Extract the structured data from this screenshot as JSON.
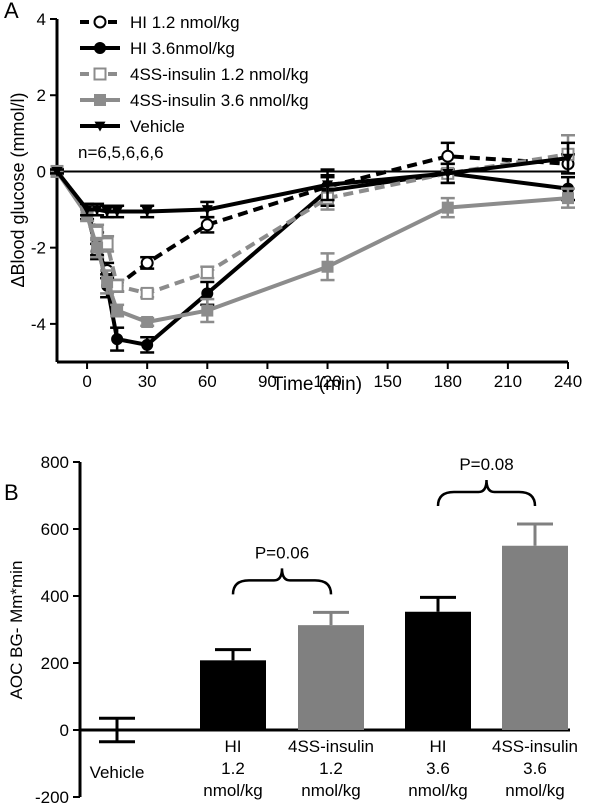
{
  "chart_data": [
    {
      "panel_label": "A",
      "type": "line",
      "xlabel": "Time (min)",
      "ylabel": "ΔBlood glucose (mmol/l)",
      "xlim": [
        -15,
        240
      ],
      "ylim": [
        -5,
        4
      ],
      "xticks": [
        0,
        30,
        60,
        90,
        120,
        150,
        180,
        210,
        240
      ],
      "yticks": [
        -4,
        -2,
        0,
        2,
        4
      ],
      "annotation": "n=6,5,6,6,6",
      "legend_position": "top-left",
      "series": [
        {
          "name": "HI 1.2 nmol/kg",
          "color": "#000000",
          "dash": "dashed",
          "marker": "circle-open",
          "x": [
            -15,
            0,
            5,
            10,
            15,
            30,
            60,
            120,
            180,
            240
          ],
          "y": [
            0,
            -1.1,
            -2.1,
            -2.6,
            -3.0,
            -2.4,
            -1.4,
            -0.4,
            0.4,
            0.2
          ],
          "err": [
            0.05,
            0.15,
            0.2,
            0.2,
            0.15,
            0.15,
            0.2,
            0.25,
            0.35,
            0.25
          ]
        },
        {
          "name": "HI 3.6nmol/kg",
          "color": "#000000",
          "dash": "solid",
          "marker": "circle-filled",
          "x": [
            -15,
            0,
            5,
            10,
            15,
            30,
            60,
            120,
            180,
            240
          ],
          "y": [
            0,
            -1.0,
            -1.9,
            -3.0,
            -4.4,
            -4.55,
            -3.2,
            -0.5,
            -0.05,
            -0.45
          ],
          "err": [
            0.05,
            0.15,
            0.3,
            0.3,
            0.3,
            0.2,
            0.3,
            0.4,
            0.25,
            0.3
          ]
        },
        {
          "name": "4SS-insulin 1.2 nmol/kg",
          "color": "#8c8c8c",
          "dash": "dashed",
          "marker": "square-open",
          "x": [
            -15,
            0,
            5,
            10,
            15,
            30,
            60,
            120,
            180,
            240
          ],
          "y": [
            0,
            -1.0,
            -1.6,
            -1.9,
            -3.0,
            -3.2,
            -2.65,
            -0.7,
            -0.05,
            0.45
          ],
          "err": [
            0.05,
            0.15,
            0.2,
            0.2,
            0.15,
            0.1,
            0.15,
            0.3,
            0.25,
            0.5
          ]
        },
        {
          "name": "4SS-insulin 3.6 nmol/kg",
          "color": "#8c8c8c",
          "dash": "solid",
          "marker": "square-filled",
          "x": [
            -15,
            0,
            5,
            10,
            15,
            30,
            60,
            120,
            180,
            240
          ],
          "y": [
            0,
            -1.15,
            -2.0,
            -2.9,
            -3.65,
            -3.95,
            -3.65,
            -2.5,
            -0.95,
            -0.7
          ],
          "err": [
            0.05,
            0.15,
            0.25,
            0.3,
            0.15,
            0.1,
            0.3,
            0.35,
            0.25,
            0.25
          ]
        },
        {
          "name": "Vehicle",
          "color": "#000000",
          "dash": "solid",
          "marker": "triangle-down",
          "x": [
            -15,
            0,
            5,
            10,
            15,
            30,
            60,
            120,
            180,
            240
          ],
          "y": [
            0,
            -1.0,
            -1.0,
            -1.05,
            -1.05,
            -1.05,
            -1.0,
            -0.35,
            -0.05,
            0.35
          ],
          "err": [
            0.05,
            0.15,
            0.15,
            0.15,
            0.15,
            0.15,
            0.2,
            0.4,
            0.25,
            0.4
          ]
        }
      ]
    },
    {
      "panel_label": "B",
      "type": "bar",
      "ylabel": "AOC BG- Mm*min",
      "ylim": [
        -200,
        800
      ],
      "yticks": [
        -200,
        0,
        200,
        400,
        600,
        800
      ],
      "categories": [
        [
          "Vehicle"
        ],
        [
          "HI",
          "1.2",
          "nmol/kg"
        ],
        [
          "4SS-insulin",
          "1.2",
          "nmol/kg"
        ],
        [
          "HI",
          "3.6",
          "nmol/kg"
        ],
        [
          "4SS-insulin",
          "3.6",
          "nmol/kg"
        ]
      ],
      "values": [
        0,
        208,
        313,
        353,
        550
      ],
      "errors": [
        35,
        32,
        38,
        43,
        65
      ],
      "colors": [
        "#000000",
        "#000000",
        "#808080",
        "#000000",
        "#808080"
      ],
      "comparisons": [
        {
          "from": 1,
          "to": 2,
          "label": "P=0.06"
        },
        {
          "from": 3,
          "to": 4,
          "label": "P=0.08"
        }
      ]
    }
  ]
}
